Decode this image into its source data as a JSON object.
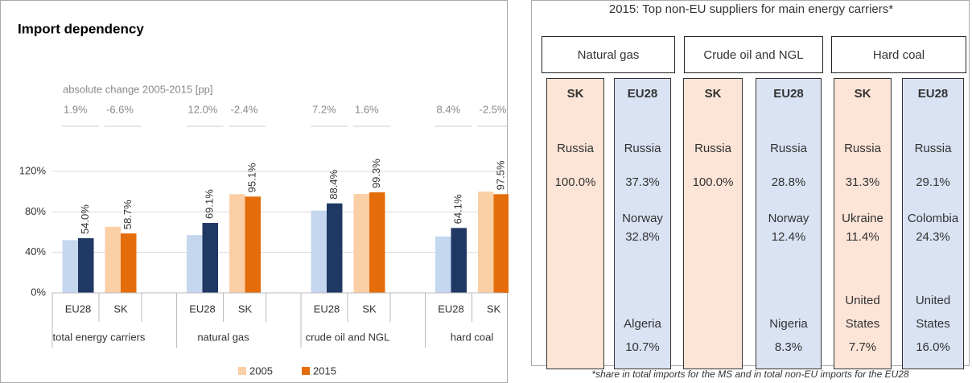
{
  "chart_data": {
    "type": "bar",
    "title": "Import dependency",
    "subtitle": "absolute change 2005-2015 [pp]",
    "groups": [
      "total energy carriers",
      "natural gas",
      "crude oil and NGL",
      "hard coal"
    ],
    "categories": [
      "EU28",
      "SK",
      "EU28",
      "SK",
      "EU28",
      "SK",
      "EU28",
      "SK"
    ],
    "changes": {
      "values": [
        1.9,
        -6.6,
        12.0,
        -2.4,
        7.2,
        1.6,
        8.4,
        -2.5
      ],
      "value_labels": [
        "1.9%",
        "-6.6%",
        "12.0%",
        "-2.4%",
        "7.2%",
        "1.6%",
        "8.4%",
        "-2.5%"
      ]
    },
    "series": [
      {
        "name": "2005",
        "color": "#fbcfa6",
        "bar_colors": [
          "#c5d6ef",
          "#fbcfa6",
          "#c5d6ef",
          "#fbcfa6",
          "#c5d6ef",
          "#fbcfa6",
          "#c5d6ef",
          "#fbcfa6"
        ],
        "values": [
          52.1,
          65.3,
          57.1,
          97.5,
          81.2,
          97.7,
          55.7,
          100.0
        ]
      },
      {
        "name": "2015",
        "color": "#e46c0a",
        "bar_colors": [
          "#1f3864",
          "#e46c0a",
          "#1f3864",
          "#e46c0a",
          "#1f3864",
          "#e46c0a",
          "#1f3864",
          "#e46c0a"
        ],
        "values": [
          54.0,
          58.7,
          69.1,
          95.1,
          88.4,
          99.3,
          64.1,
          97.5
        ],
        "value_labels": [
          "54.0%",
          "58.7%",
          "69.1%",
          "95.1%",
          "88.4%",
          "99.3%",
          "64.1%",
          "97.5%"
        ]
      }
    ],
    "ylim": [
      0,
      120
    ],
    "yticks": [
      {
        "value": 0,
        "label": "0%"
      },
      {
        "value": 40,
        "label": "40%"
      },
      {
        "value": 80,
        "label": "80%"
      },
      {
        "value": 120,
        "label": "120%"
      }
    ],
    "legend": "bottom"
  },
  "suppliers": {
    "title": "2015: Top non-EU suppliers for main energy carriers*",
    "carriers": [
      {
        "name": "Natural gas",
        "columns": [
          {
            "header": "SK",
            "countries": [
              "Russia"
            ],
            "values": [
              100.0
            ],
            "value_labels": [
              "100.0%"
            ]
          },
          {
            "header": "EU28",
            "countries": [
              "Russia",
              "Norway",
              "Algeria"
            ],
            "values": [
              37.3,
              32.8,
              10.7
            ],
            "value_labels": [
              "37.3%",
              "32.8%",
              "10.7%"
            ]
          }
        ]
      },
      {
        "name": "Crude oil and NGL",
        "columns": [
          {
            "header": "SK",
            "countries": [
              "Russia"
            ],
            "values": [
              100.0
            ],
            "value_labels": [
              "100.0%"
            ]
          },
          {
            "header": "EU28",
            "countries": [
              "Russia",
              "Norway",
              "Nigeria"
            ],
            "values": [
              28.8,
              12.4,
              8.3
            ],
            "value_labels": [
              "28.8%",
              "12.4%",
              "8.3%"
            ]
          }
        ]
      },
      {
        "name": "Hard coal",
        "columns": [
          {
            "header": "SK",
            "countries": [
              "Russia",
              "Ukraine",
              "United States"
            ],
            "values": [
              31.3,
              11.4,
              7.7
            ],
            "value_labels": [
              "31.3%",
              "11.4%",
              "7.7%"
            ]
          },
          {
            "header": "EU28",
            "countries": [
              "Russia",
              "Colombia",
              "United States"
            ],
            "values": [
              29.1,
              24.3,
              16.0
            ],
            "value_labels": [
              "29.1%",
              "24.3%",
              "16.0%"
            ]
          }
        ]
      }
    ],
    "footnote": "*share in total imports for the MS and in total non-EU imports for the EU28"
  }
}
